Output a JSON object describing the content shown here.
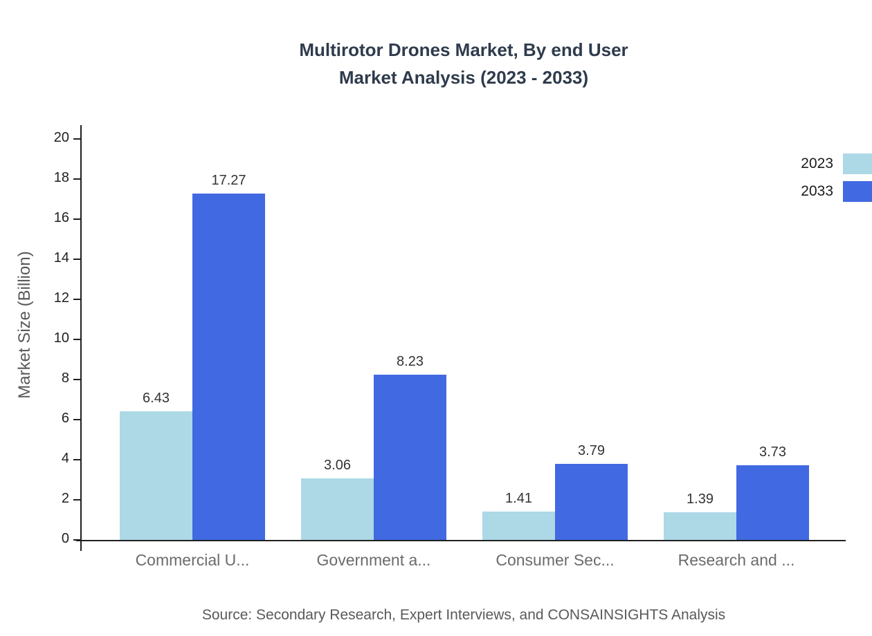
{
  "header": {
    "title_line1": "Multirotor Drones Market, By end User",
    "title_line2": "Market Analysis (2023 - 2033)"
  },
  "footer": {
    "source": "Source: Secondary Research, Expert Interviews, and CONSAINSIGHTS Analysis"
  },
  "chart_data": {
    "type": "bar",
    "title": "Multirotor Drones Market, By end User Market Analysis (2023 - 2033)",
    "categories": [
      "Commercial U...",
      "Government a...",
      "Consumer Sec...",
      "Research and ..."
    ],
    "series": [
      {
        "name": "2023",
        "color": "#add8e6",
        "values": [
          6.43,
          3.06,
          1.41,
          1.39
        ]
      },
      {
        "name": "2033",
        "color": "#4169e1",
        "values": [
          17.27,
          8.23,
          3.79,
          3.73
        ]
      }
    ],
    "ylabel": "Market Size (Billion)",
    "ylim": [
      0,
      20
    ],
    "ytick_step": 2,
    "grid": false,
    "legend_position": "top-right",
    "value_labels": true
  }
}
